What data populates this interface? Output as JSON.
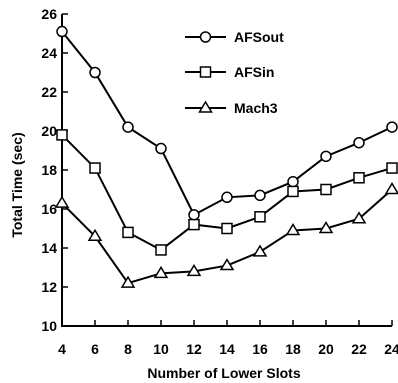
{
  "chart_data": {
    "type": "line",
    "title": "",
    "xlabel": "Number of Lower Slots",
    "ylabel": "Total Time (sec)",
    "x": [
      4,
      6,
      8,
      10,
      12,
      14,
      16,
      18,
      20,
      22,
      24
    ],
    "xlim": [
      4,
      24
    ],
    "ylim": [
      10,
      26
    ],
    "xticks": [
      "4",
      "6",
      "8",
      "10",
      "12",
      "14",
      "16",
      "18",
      "20",
      "22",
      "24"
    ],
    "yticks": [
      "10",
      "12",
      "14",
      "16",
      "18",
      "20",
      "22",
      "24",
      "26"
    ],
    "grid": false,
    "legend_position": "top-center",
    "series": [
      {
        "name": "AFSout",
        "marker": "circle",
        "values": [
          25.1,
          23.0,
          20.2,
          19.1,
          15.7,
          16.6,
          16.7,
          17.4,
          18.7,
          19.4,
          20.2
        ]
      },
      {
        "name": "AFSin",
        "marker": "square",
        "values": [
          19.8,
          18.1,
          14.8,
          13.9,
          15.2,
          15.0,
          15.6,
          16.9,
          17.0,
          17.6,
          18.1
        ]
      },
      {
        "name": "Mach3",
        "marker": "triangle",
        "values": [
          16.3,
          14.6,
          12.2,
          12.7,
          12.8,
          13.1,
          13.8,
          14.9,
          15.0,
          15.5,
          17.0
        ]
      }
    ]
  }
}
